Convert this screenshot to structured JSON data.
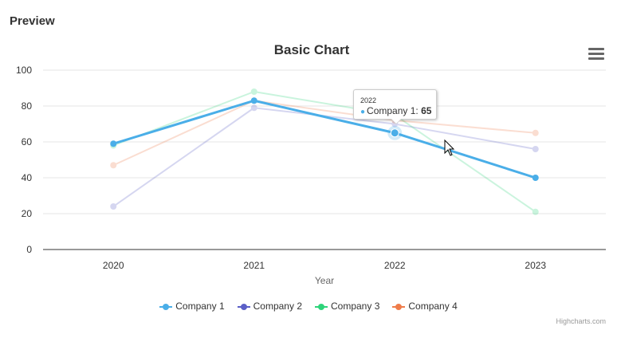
{
  "page": {
    "title": "Preview"
  },
  "menu": {
    "icon": "hamburger-menu-icon"
  },
  "chart_data": {
    "type": "line",
    "title": "Basic Chart",
    "xlabel": "Year",
    "ylabel": "",
    "categories": [
      "2020",
      "2021",
      "2022",
      "2023"
    ],
    "ylim": [
      0,
      100
    ],
    "yticks": [
      0,
      20,
      40,
      60,
      80,
      100
    ],
    "grid": true,
    "legend_position": "bottom-center",
    "series": [
      {
        "name": "Company 1",
        "values": [
          59,
          83,
          65,
          40
        ],
        "color": "#4aaee8",
        "highlighted": true
      },
      {
        "name": "Company 2",
        "values": [
          24,
          79,
          70,
          56
        ],
        "color": "#5b5fc7",
        "highlighted": false
      },
      {
        "name": "Company 3",
        "values": [
          58,
          88,
          75,
          21
        ],
        "color": "#2ed47a",
        "highlighted": false
      },
      {
        "name": "Company 4",
        "values": [
          47,
          83,
          72,
          65
        ],
        "color": "#ef7c4a",
        "highlighted": false
      }
    ]
  },
  "tooltip": {
    "header": "2022",
    "series_label": "Company 1: ",
    "value": "65"
  },
  "credits": "Highcharts.com"
}
